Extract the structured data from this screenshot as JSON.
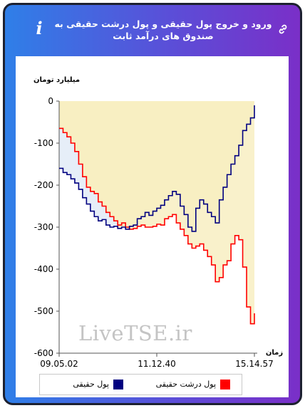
{
  "header": {
    "title": "ورود و خروج پول حقیقی و پول درشت حقیقی به صندوق های درآمد ثابت"
  },
  "icons": {
    "info": "info-icon",
    "link": "link-icon"
  },
  "watermark": "LiveTSE.ir",
  "colors": {
    "header_left": "#2f7fe8",
    "header_right": "#7a2fc8",
    "area_fill": "#f8efc2",
    "series_real": "#000080",
    "series_big": "#ff0000"
  },
  "chart_data": {
    "type": "line",
    "ylabel": "میلیارد تومان",
    "xlabel": "زمان",
    "ylim": [
      -600,
      0
    ],
    "yticks": [
      0,
      -100,
      -200,
      -300,
      -400,
      -500,
      -600
    ],
    "ytick_labels": [
      "0",
      "-100",
      "-200",
      "-300",
      "-400",
      "-500",
      "-600"
    ],
    "xlim": [
      0,
      100
    ],
    "xticks": [
      0,
      50,
      100
    ],
    "xtick_labels": [
      "09.05.02",
      "11.12.40",
      "15.14.57"
    ],
    "grid": false,
    "legend_position": "bottom",
    "series": [
      {
        "name": "پول حقیقی",
        "color": "#000080",
        "x": [
          0,
          2,
          4,
          6,
          8,
          10,
          12,
          14,
          16,
          18,
          20,
          22,
          24,
          26,
          28,
          30,
          32,
          34,
          36,
          38,
          40,
          42,
          44,
          46,
          48,
          50,
          52,
          54,
          56,
          58,
          60,
          62,
          64,
          66,
          68,
          70,
          72,
          74,
          76,
          78,
          80,
          82,
          84,
          86,
          88,
          90,
          92,
          94,
          96,
          98,
          100
        ],
        "y": [
          -160,
          -170,
          -175,
          -185,
          -195,
          -210,
          -230,
          -245,
          -262,
          -275,
          -285,
          -282,
          -295,
          -300,
          -298,
          -303,
          -300,
          -305,
          -298,
          -295,
          -280,
          -275,
          -265,
          -272,
          -262,
          -255,
          -248,
          -235,
          -225,
          -215,
          -222,
          -250,
          -270,
          -300,
          -310,
          -255,
          -235,
          -245,
          -265,
          -275,
          -290,
          -235,
          -205,
          -175,
          -150,
          -130,
          -105,
          -70,
          -55,
          -40,
          -10
        ]
      },
      {
        "name": "پول درشت حقیقی",
        "color": "#ff0000",
        "x": [
          0,
          2,
          4,
          6,
          8,
          10,
          12,
          14,
          16,
          18,
          20,
          22,
          24,
          26,
          28,
          30,
          32,
          34,
          36,
          38,
          40,
          42,
          44,
          46,
          48,
          50,
          52,
          54,
          56,
          58,
          60,
          62,
          64,
          66,
          68,
          70,
          72,
          74,
          76,
          78,
          80,
          82,
          84,
          86,
          88,
          90,
          92,
          94,
          96,
          98,
          100
        ],
        "y": [
          -65,
          -75,
          -85,
          -100,
          -120,
          -150,
          -180,
          -205,
          -215,
          -220,
          -240,
          -250,
          -265,
          -275,
          -285,
          -295,
          -290,
          -300,
          -305,
          -303,
          -298,
          -295,
          -300,
          -300,
          -298,
          -293,
          -295,
          -280,
          -275,
          -270,
          -290,
          -305,
          -320,
          -340,
          -350,
          -345,
          -340,
          -355,
          -370,
          -390,
          -430,
          -420,
          -390,
          -380,
          -340,
          -320,
          -330,
          -395,
          -490,
          -530,
          -505
        ]
      }
    ]
  }
}
